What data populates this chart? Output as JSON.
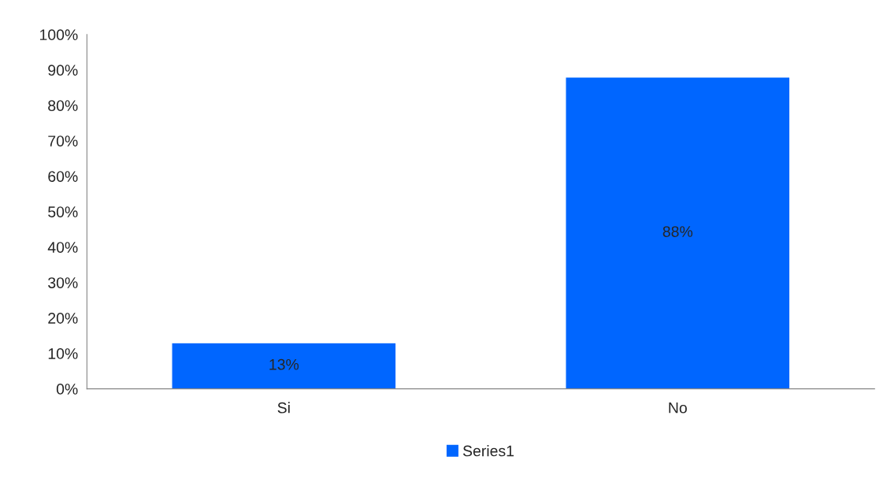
{
  "chart_data": {
    "type": "bar",
    "categories": [
      "Si",
      "No"
    ],
    "series": [
      {
        "name": "Series1",
        "color": "#0066ff",
        "values": [
          13,
          88
        ]
      }
    ],
    "value_labels": [
      "13%",
      "88%"
    ],
    "ylim": [
      0,
      100
    ],
    "yticks": [
      {
        "value": 0,
        "label": "0%"
      },
      {
        "value": 10,
        "label": "10%"
      },
      {
        "value": 20,
        "label": "20%"
      },
      {
        "value": 30,
        "label": "30%"
      },
      {
        "value": 40,
        "label": "40%"
      },
      {
        "value": 50,
        "label": "50%"
      },
      {
        "value": 60,
        "label": "60%"
      },
      {
        "value": 70,
        "label": "70%"
      },
      {
        "value": 80,
        "label": "80%"
      },
      {
        "value": 90,
        "label": "90%"
      },
      {
        "value": 100,
        "label": "100%"
      }
    ],
    "grid": false,
    "legend": "bottom"
  }
}
